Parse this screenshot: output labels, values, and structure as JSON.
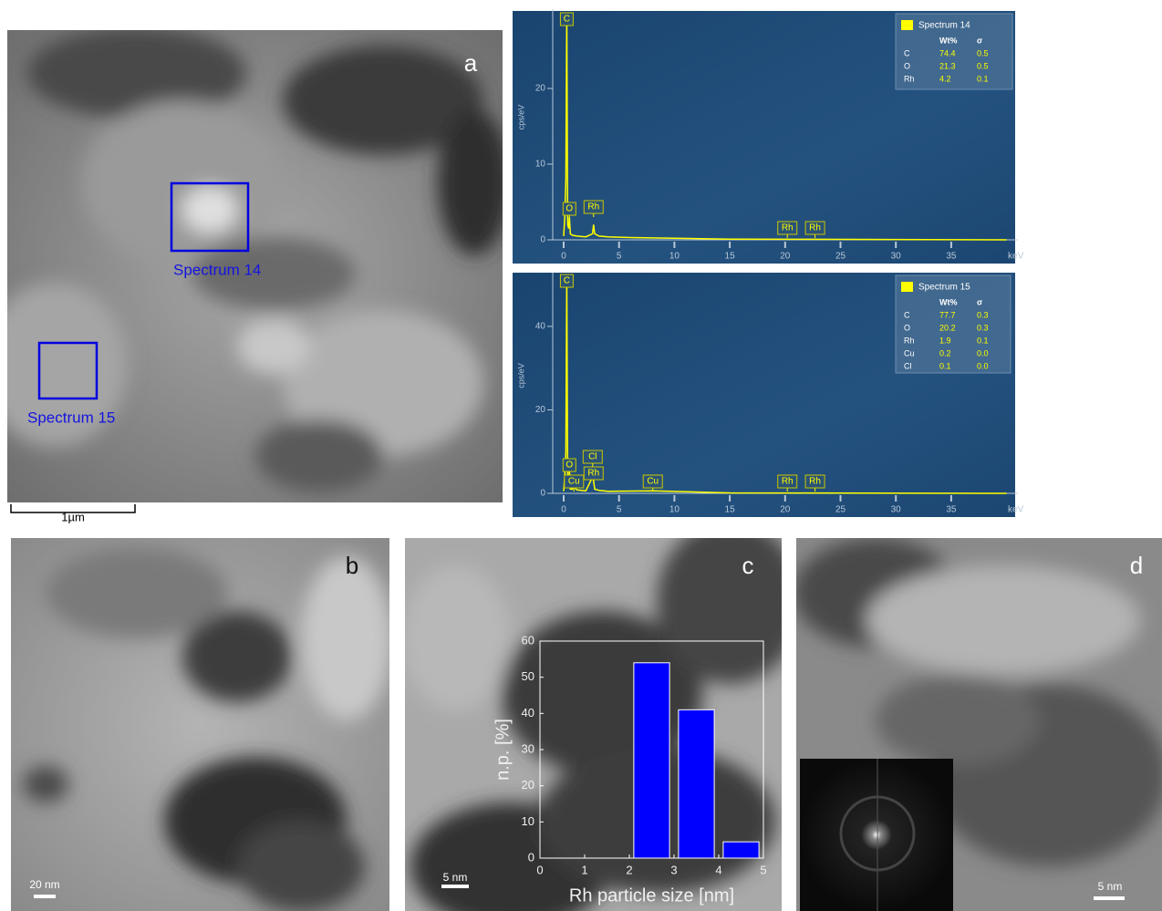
{
  "panels": {
    "a": {
      "label": "a",
      "regions": [
        "Spectrum 14",
        "Spectrum 15"
      ],
      "scale": "1µm"
    },
    "b": {
      "label": "b",
      "scale": "20 nm"
    },
    "c": {
      "label": "c",
      "scale": "5 nm"
    },
    "d": {
      "label": "d",
      "scale": "5 nm"
    }
  },
  "chart_data": [
    {
      "type": "line",
      "x": [
        0,
        0.1,
        0.2,
        0.28,
        0.36,
        0.45,
        0.52,
        0.6,
        0.8,
        1.2,
        2.0,
        2.6,
        2.7,
        2.8,
        3.2,
        4,
        6,
        10,
        15,
        40
      ],
      "series": [
        {
          "name": "Spectrum 14",
          "color": "#ffff00",
          "values": [
            0.5,
            3,
            8,
            30,
            2,
            1.5,
            3,
            0.8,
            0.6,
            0.5,
            0.4,
            0.8,
            2,
            0.8,
            0.5,
            0.4,
            0.3,
            0.2,
            0.1,
            0
          ]
        }
      ],
      "xlim": [
        0,
        40.5
      ],
      "xticks": [
        0,
        5,
        10,
        15,
        20,
        25,
        30,
        35
      ],
      "ylim": [
        0,
        30
      ],
      "yticks": [
        0,
        10,
        20
      ],
      "x_label": "keV",
      "y_label": "cps/eV",
      "peaks": [
        {
          "label": "C",
          "energy": 0.28
        },
        {
          "label": "O",
          "energy": 0.52
        },
        {
          "label": "Rh",
          "energy": 2.7
        },
        {
          "label": "Rh",
          "energy": 20.2
        },
        {
          "label": "Rh",
          "energy": 22.7
        }
      ],
      "quant": {
        "headers": [
          "Wt%",
          "σ"
        ],
        "rows": [
          [
            "C",
            "74.4",
            "0.5"
          ],
          [
            "O",
            "21.3",
            "0.5"
          ],
          [
            "Rh",
            "4.2",
            "0.1"
          ]
        ]
      }
    },
    {
      "type": "line",
      "x": [
        0,
        0.1,
        0.2,
        0.28,
        0.36,
        0.45,
        0.52,
        0.6,
        0.8,
        0.93,
        1.2,
        2.0,
        2.62,
        2.7,
        2.8,
        3.2,
        4,
        8.05,
        15,
        40
      ],
      "series": [
        {
          "name": "Spectrum 15",
          "color": "#ffff00",
          "values": [
            0.5,
            4,
            10,
            52,
            3,
            2,
            6,
            1,
            1,
            1.5,
            0.8,
            0.6,
            4,
            3,
            1,
            0.7,
            0.5,
            0.6,
            0.1,
            0
          ]
        }
      ],
      "xlim": [
        0,
        40.5
      ],
      "xticks": [
        0,
        5,
        10,
        15,
        20,
        25,
        30,
        35
      ],
      "ylim": [
        0,
        52
      ],
      "yticks": [
        0,
        20,
        40
      ],
      "x_label": "keV",
      "y_label": "cps/eV",
      "peaks": [
        {
          "label": "C",
          "energy": 0.28
        },
        {
          "label": "O",
          "energy": 0.52
        },
        {
          "label": "Cu",
          "energy": 0.93
        },
        {
          "label": "Cl",
          "energy": 2.62
        },
        {
          "label": "Rh",
          "energy": 2.7
        },
        {
          "label": "Cu",
          "energy": 8.05
        },
        {
          "label": "Rh",
          "energy": 20.2
        },
        {
          "label": "Rh",
          "energy": 22.7
        }
      ],
      "quant": {
        "headers": [
          "Wt%",
          "σ"
        ],
        "rows": [
          [
            "C",
            "77.7",
            "0.3"
          ],
          [
            "O",
            "20.2",
            "0.3"
          ],
          [
            "Rh",
            "1.9",
            "0.1"
          ],
          [
            "Cu",
            "0.2",
            "0.0"
          ],
          [
            "Cl",
            "0.1",
            "0.0"
          ]
        ]
      }
    },
    {
      "type": "histogram",
      "bins": [
        2,
        3,
        4,
        5
      ],
      "values": [
        54,
        41,
        4.5
      ],
      "color": "#0000ff",
      "xlim": [
        0,
        5
      ],
      "xticks": [
        0,
        1,
        2,
        3,
        4,
        5
      ],
      "ylim": [
        0,
        60
      ],
      "yticks": [
        0,
        10,
        20,
        30,
        40,
        50,
        60
      ],
      "x_label": "Rh particle size [nm]",
      "y_label": "n.p. [%]"
    }
  ]
}
